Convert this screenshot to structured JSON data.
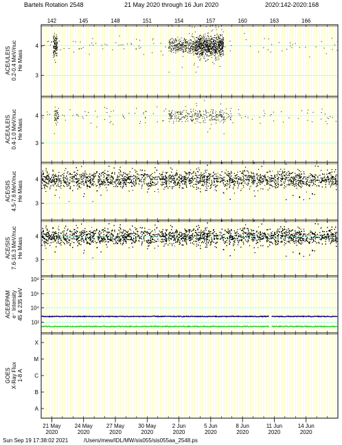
{
  "header": {
    "title": "Bartels Rotation 2548",
    "date_range": "21 May 2020 through 16 Jun 2020",
    "doy_range": "2020:142-2020:168"
  },
  "footer": {
    "timestamp": "Sun Sep 19 17:38:02 2021",
    "path": "/Users/mew/IDL/MW/sis055/sis055aa_2548.ps"
  },
  "colors": {
    "grid_yellow": "#ffff99",
    "grid_cyan": "#99ffff",
    "dots": "#000000",
    "epam_high": "#000080",
    "epam_low": "#22cc22"
  },
  "chart_data": {
    "type": "scatter",
    "x_axis": {
      "doy_min": 141,
      "doy_max": 169,
      "doy_ticks": [
        "142",
        "145",
        "148",
        "151",
        "154",
        "157",
        "160",
        "163",
        "166"
      ],
      "date_ticks": [
        {
          "doy": 142,
          "day": "21 May",
          "year": "2020"
        },
        {
          "doy": 145,
          "day": "24 May",
          "year": "2020"
        },
        {
          "doy": 148,
          "day": "27 May",
          "year": "2020"
        },
        {
          "doy": 151,
          "day": "30 May",
          "year": "2020"
        },
        {
          "doy": 154,
          "day": "2 Jun",
          "year": "2020"
        },
        {
          "doy": 157,
          "day": "5 Jun",
          "year": "2020"
        },
        {
          "doy": 160,
          "day": "8 Jun",
          "year": "2020"
        },
        {
          "doy": 163,
          "day": "11 Jun",
          "year": "2020"
        },
        {
          "doy": 166,
          "day": "14 Jun",
          "year": "2020"
        }
      ]
    },
    "panels": [
      {
        "id": "uleis1",
        "ylabel": [
          "ACE/ULEIS",
          "0.2-0.4 MeV/nuc",
          "He Mass"
        ],
        "yticks": [
          "4",
          "3"
        ],
        "ylim": [
          2.3,
          4.7
        ],
        "series_shape": "mass-scatter",
        "clusters": [
          {
            "from": 142.1,
            "to": 142.5,
            "center": 4.0,
            "density": "high"
          },
          {
            "from": 153.0,
            "to": 155.5,
            "center": 4.0,
            "density": "medium"
          },
          {
            "from": 155.5,
            "to": 158.2,
            "center": 4.0,
            "density": "high"
          }
        ]
      },
      {
        "id": "uleis2",
        "ylabel": [
          "ACE/ULEIS",
          "0.4-1.0 MeV/nuc",
          "He Mass"
        ],
        "yticks": [
          "4",
          "3"
        ],
        "ylim": [
          2.3,
          4.7
        ],
        "series_shape": "mass-scatter",
        "clusters": [
          {
            "from": 142.2,
            "to": 142.6,
            "center": 4.0,
            "density": "medium"
          },
          {
            "from": 153.0,
            "to": 159.0,
            "center": 4.0,
            "density": "low"
          }
        ]
      },
      {
        "id": "sis1",
        "ylabel": [
          "ACE/SIS",
          "4.5-7.6 MeV/nuc",
          "He Mass"
        ],
        "yticks": [
          "4",
          "3"
        ],
        "ylim": [
          2.3,
          4.7
        ],
        "series_shape": "mass-scatter",
        "clusters": [
          {
            "from": 141.0,
            "to": 169.0,
            "center": 4.0,
            "density": "high"
          }
        ]
      },
      {
        "id": "sis2",
        "ylabel": [
          "ACE/SIS",
          "7.6-16.3 MeV/nuc",
          "He Mass"
        ],
        "yticks": [
          "4",
          "3"
        ],
        "ylim": [
          2.3,
          4.7
        ],
        "series_shape": "mass-scatter",
        "clusters": [
          {
            "from": 141.0,
            "to": 169.0,
            "center": 4.0,
            "density": "very-high"
          }
        ]
      },
      {
        "id": "epam",
        "ylabel": [
          "ACE/EPAM",
          "e⁻ Intensity",
          "45 & 235 keV"
        ],
        "yticks": [
          "10⁸",
          "10⁶",
          "10⁴",
          "10²"
        ],
        "ylim_log10": [
          0.5,
          8.5
        ],
        "series": [
          {
            "energy": "45 keV",
            "log10_level": 2.8,
            "color": "#000080"
          },
          {
            "energy": "235 keV",
            "log10_level": 1.4,
            "color": "#22cc22"
          }
        ],
        "gap_doy": [
          162.55,
          162.75
        ]
      },
      {
        "id": "goes",
        "ylabel": [
          "GOES",
          "X-Ray Flux",
          "1-8 A"
        ],
        "yticks": [
          "X",
          "M",
          "C",
          "B",
          "A"
        ],
        "series": []
      }
    ]
  }
}
